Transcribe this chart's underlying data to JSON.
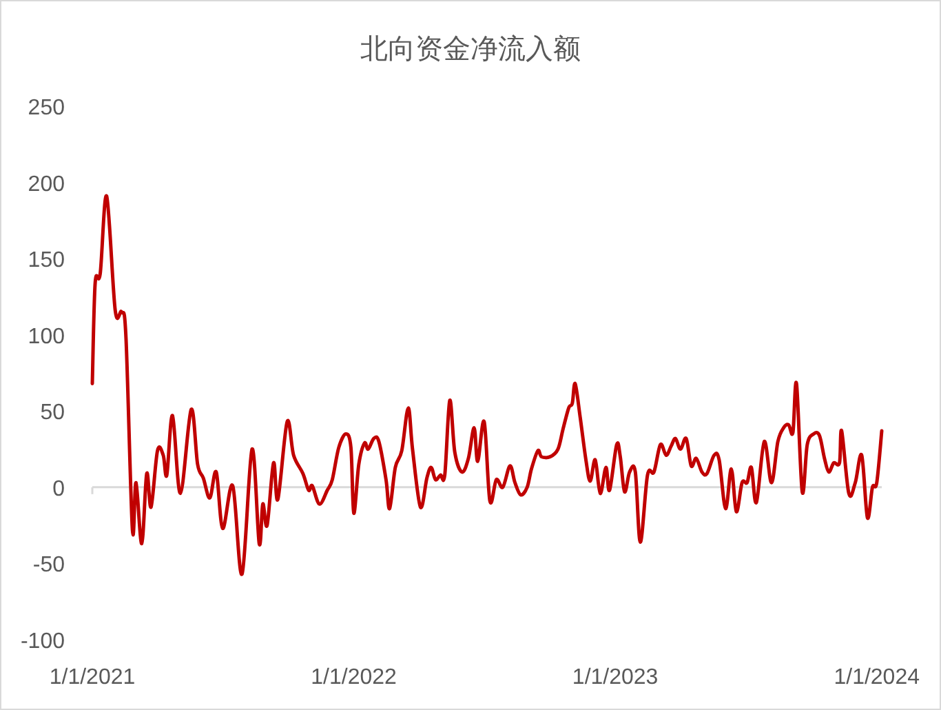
{
  "chart_data": {
    "type": "line",
    "title": "北向资金净流入额",
    "x": [
      "2021-01-01",
      "2021-01-05",
      "2021-01-12",
      "2021-01-21",
      "2021-02-02",
      "2021-02-11",
      "2021-02-17",
      "2021-02-26",
      "2021-03-03",
      "2021-03-11",
      "2021-03-18",
      "2021-03-24",
      "2021-04-02",
      "2021-04-10",
      "2021-04-15",
      "2021-04-23",
      "2021-05-04",
      "2021-05-19",
      "2021-05-28",
      "2021-06-05",
      "2021-06-14",
      "2021-06-23",
      "2021-07-02",
      "2021-07-16",
      "2021-07-29",
      "2021-08-12",
      "2021-08-22",
      "2021-08-27",
      "2021-09-02",
      "2021-09-11",
      "2021-09-17",
      "2021-09-30",
      "2021-10-09",
      "2021-10-22",
      "2021-10-30",
      "2021-11-04",
      "2021-11-14",
      "2021-11-25",
      "2021-12-02",
      "2021-12-11",
      "2021-12-21",
      "2021-12-28",
      "2022-01-01",
      "2022-01-08",
      "2022-01-16",
      "2022-01-21",
      "2022-01-29",
      "2022-02-05",
      "2022-02-15",
      "2022-02-20",
      "2022-02-28",
      "2022-03-09",
      "2022-03-18",
      "2022-03-24",
      "2022-04-04",
      "2022-04-13",
      "2022-04-19",
      "2022-04-25",
      "2022-05-02",
      "2022-05-08",
      "2022-05-15",
      "2022-05-22",
      "2022-06-01",
      "2022-06-10",
      "2022-06-18",
      "2022-06-23",
      "2022-07-02",
      "2022-07-10",
      "2022-07-19",
      "2022-07-28",
      "2022-08-07",
      "2022-08-14",
      "2022-08-22",
      "2022-08-31",
      "2022-09-06",
      "2022-09-15",
      "2022-09-20",
      "2022-10-02",
      "2022-10-13",
      "2022-10-20",
      "2022-10-28",
      "2022-11-02",
      "2022-11-06",
      "2022-11-13",
      "2022-11-21",
      "2022-11-27",
      "2022-12-04",
      "2022-12-11",
      "2022-12-19",
      "2022-12-24",
      "2023-01-03",
      "2023-01-08",
      "2023-01-14",
      "2023-01-21",
      "2023-01-29",
      "2023-02-05",
      "2023-02-15",
      "2023-02-24",
      "2023-03-05",
      "2023-03-13",
      "2023-03-20",
      "2023-03-26",
      "2023-04-02",
      "2023-04-10",
      "2023-04-17",
      "2023-04-24",
      "2023-05-02",
      "2023-05-09",
      "2023-05-19",
      "2023-05-26",
      "2023-06-04",
      "2023-06-12",
      "2023-06-19",
      "2023-06-27",
      "2023-07-04",
      "2023-07-10",
      "2023-07-17",
      "2023-07-28",
      "2023-08-07",
      "2023-08-16",
      "2023-08-24",
      "2023-08-31",
      "2023-09-06",
      "2023-09-11",
      "2023-09-19",
      "2023-09-26",
      "2023-10-05",
      "2023-10-13",
      "2023-10-20",
      "2023-10-26",
      "2023-11-02",
      "2023-11-10",
      "2023-11-13",
      "2023-11-23",
      "2023-12-02",
      "2023-12-11",
      "2023-12-19",
      "2023-12-26",
      "2024-01-01",
      "2024-01-08"
    ],
    "series": [
      {
        "color": "#c00000",
        "values": [
          68,
          134,
          140,
          191,
          116,
          115,
          98,
          -28,
          3,
          -37,
          9,
          -13,
          24,
          21,
          8,
          47,
          -4,
          51,
          15,
          6,
          -7,
          10,
          -27,
          1,
          -57,
          25,
          -37,
          -11,
          -25,
          16,
          -8,
          43,
          21,
          9,
          -2,
          1,
          -11,
          -2,
          5,
          26,
          35,
          26,
          -17,
          15,
          29,
          25,
          32,
          30,
          5,
          -14,
          13,
          24,
          52,
          25,
          -13,
          6,
          13,
          5,
          8,
          8,
          57,
          23,
          10,
          19,
          39,
          17,
          43,
          -9,
          5,
          0,
          14,
          3,
          -5,
          0,
          12,
          24,
          20,
          20,
          25,
          38,
          52,
          55,
          68,
          46,
          18,
          4,
          18,
          -4,
          13,
          -2,
          28,
          20,
          -3,
          10,
          10,
          -36,
          8,
          10,
          28,
          21,
          27,
          32,
          25,
          32,
          14,
          19,
          10,
          9,
          21,
          18,
          -14,
          12,
          -16,
          3,
          3,
          13,
          -10,
          30,
          3,
          30,
          39,
          41,
          36,
          68,
          -3,
          28,
          35,
          34,
          19,
          10,
          16,
          16,
          37,
          -4,
          3,
          21,
          -20,
          0,
          3,
          37
        ]
      }
    ],
    "xlim": [
      "2021-01-01",
      "2024-01-08"
    ],
    "xticks": [
      {
        "value": "2021-01-01",
        "label": "1/1/2021"
      },
      {
        "value": "2022-01-01",
        "label": "1/1/2022"
      },
      {
        "value": "2023-01-01",
        "label": "1/1/2023"
      },
      {
        "value": "2024-01-01",
        "label": "1/1/2024"
      }
    ],
    "ylim": [
      -100,
      250
    ],
    "yticks": [
      -100,
      -50,
      0,
      50,
      100,
      150,
      200,
      250
    ],
    "marker": "none",
    "line_style": "solid"
  }
}
